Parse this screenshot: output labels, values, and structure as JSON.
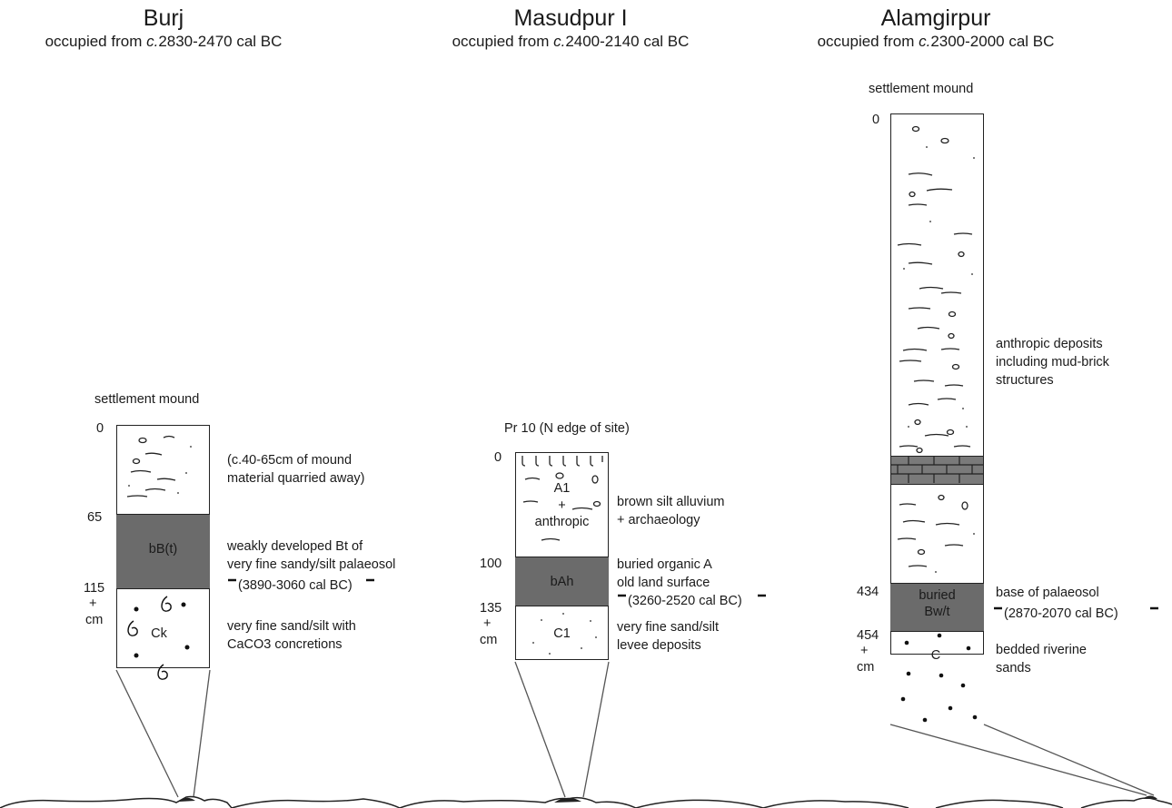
{
  "sites": [
    {
      "name": "Burj",
      "occupied_prefix": "occupied from ",
      "occupied_c": "c.",
      "occupied_range": "2830-2470 cal BC",
      "context": "settlement mound",
      "depths": [
        "0",
        "65",
        "115",
        "+",
        "cm"
      ],
      "units": [
        "bB(t)",
        "Ck"
      ],
      "notes": {
        "top_1": "(c.40-65cm of mound",
        "top_2": "material quarried away)",
        "mid_1": "weakly developed Bt of",
        "mid_2": "very fine sandy/silt palaeosol",
        "date": "(3890-3060 cal BC)",
        "bot_1": "very fine sand/silt with",
        "bot_2": "CaCO3 concretions"
      }
    },
    {
      "name": "Masudpur I",
      "occupied_prefix": "occupied from ",
      "occupied_c": "c.",
      "occupied_range": "2400-2140 cal BC",
      "context": "Pr 10 (N edge of site)",
      "depths": [
        "0",
        "100",
        "135",
        "+",
        "cm"
      ],
      "units": [
        "A1",
        "+",
        "anthropic",
        "bAh",
        "C1"
      ],
      "notes": {
        "top_1": "brown silt alluvium",
        "top_2": "+ archaeology",
        "mid_1": "buried organic A",
        "mid_2": "old land surface",
        "date": "(3260-2520 cal BC)",
        "bot_1": "very fine sand/silt",
        "bot_2": "levee deposits"
      }
    },
    {
      "name": "Alamgirpur",
      "occupied_prefix": "occupied from ",
      "occupied_c": "c.",
      "occupied_range": "2300-2000 cal BC",
      "context": "settlement mound",
      "depths": [
        "0",
        "434",
        "454",
        "+",
        "cm"
      ],
      "units": [
        "buried",
        "Bw/t",
        "C"
      ],
      "notes": {
        "top_1": "anthropic deposits",
        "top_2": "including mud-brick",
        "top_3": "structures",
        "mid_1": "base of palaeosol",
        "date": "(2870-2070 cal BC)",
        "bot_1": "bedded riverine",
        "bot_2": "sands"
      }
    }
  ]
}
